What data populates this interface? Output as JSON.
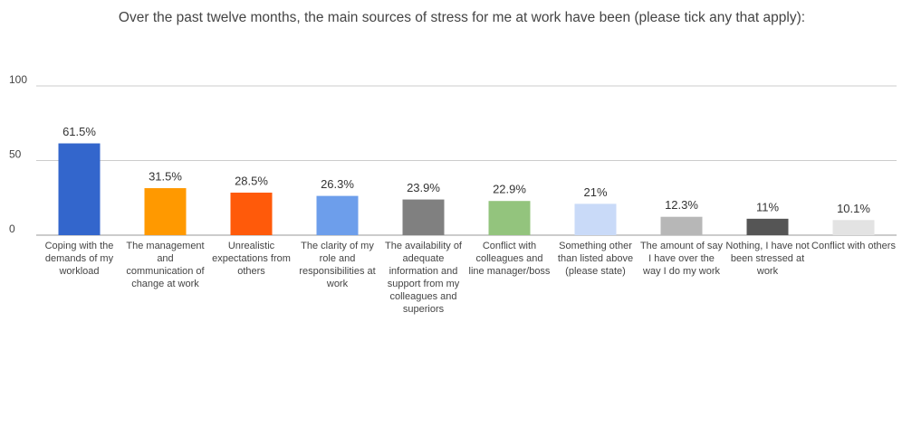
{
  "chart_data": {
    "type": "bar",
    "title": "Over the past twelve months, the main sources of stress for me at work have been (please tick any that apply):",
    "categories": [
      "Coping with the demands of my workload",
      "The management and communication of change at work",
      "Unrealistic expectations from others",
      "The clarity of my role and responsibilities at work",
      "The availability of adequate information and support from my colleagues and superiors",
      "Conflict with colleagues and line manager/boss",
      "Something other than listed above (please state)",
      "The amount of say I have over the way I do my work",
      "Nothing, I have not been stressed at work",
      "Conflict with others"
    ],
    "values": [
      61.5,
      31.5,
      28.5,
      26.3,
      23.9,
      22.9,
      21,
      12.3,
      11,
      10.1
    ],
    "value_labels": [
      "61.5%",
      "31.5%",
      "28.5%",
      "26.3%",
      "23.9%",
      "22.9%",
      "21%",
      "12.3%",
      "11%",
      "10.1%"
    ],
    "colors": [
      "#3366cc",
      "#ff9900",
      "#ff5a0a",
      "#6d9eeb",
      "#808080",
      "#93c47d",
      "#c9daf8",
      "#b7b7b7",
      "#555555",
      "#e3e3e3"
    ],
    "ylim": [
      0,
      100
    ],
    "yticks": [
      0,
      50,
      100
    ],
    "grid": true
  }
}
